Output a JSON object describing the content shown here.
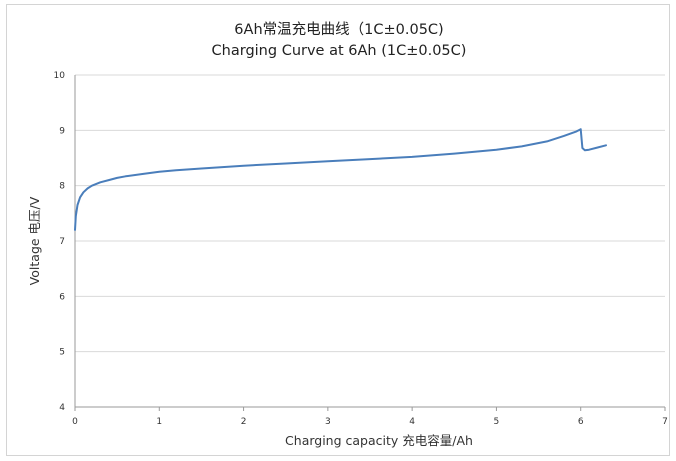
{
  "chart_data": {
    "type": "line",
    "title": "6Ah常温充电曲线（1C±0.05C)",
    "subtitle": "Charging Curve at 6Ah (1C±0.05C)",
    "xlabel": "Charging capacity 充电容量/Ah",
    "ylabel": "Voltage 电压/V",
    "xlim": [
      0,
      7
    ],
    "ylim": [
      4,
      10
    ],
    "xticks": [
      "0",
      "1",
      "2",
      "3",
      "4",
      "5",
      "6",
      "7"
    ],
    "yticks": [
      "4",
      "5",
      "6",
      "7",
      "8",
      "9",
      "10"
    ],
    "grid": "horizontal",
    "legend": "none",
    "colors": {
      "line": "#4a7ebb",
      "grid": "#d9d9d9",
      "axis": "#9a9a9a"
    },
    "series": [
      {
        "x": [
          0.0,
          0.01,
          0.03,
          0.06,
          0.1,
          0.15,
          0.2,
          0.3,
          0.4,
          0.5,
          0.6,
          0.8,
          1.0,
          1.2,
          1.5,
          2.0,
          2.5,
          3.0,
          3.5,
          4.0,
          4.5,
          5.0,
          5.3,
          5.6,
          5.8,
          5.95,
          6.0,
          6.02,
          6.05,
          6.1,
          6.2,
          6.3
        ],
        "y": [
          7.2,
          7.45,
          7.65,
          7.79,
          7.88,
          7.95,
          8.0,
          8.06,
          8.1,
          8.14,
          8.17,
          8.21,
          8.25,
          8.28,
          8.31,
          8.36,
          8.4,
          8.44,
          8.48,
          8.52,
          8.58,
          8.65,
          8.71,
          8.8,
          8.9,
          8.98,
          9.02,
          8.68,
          8.64,
          8.65,
          8.69,
          8.73
        ]
      }
    ]
  }
}
